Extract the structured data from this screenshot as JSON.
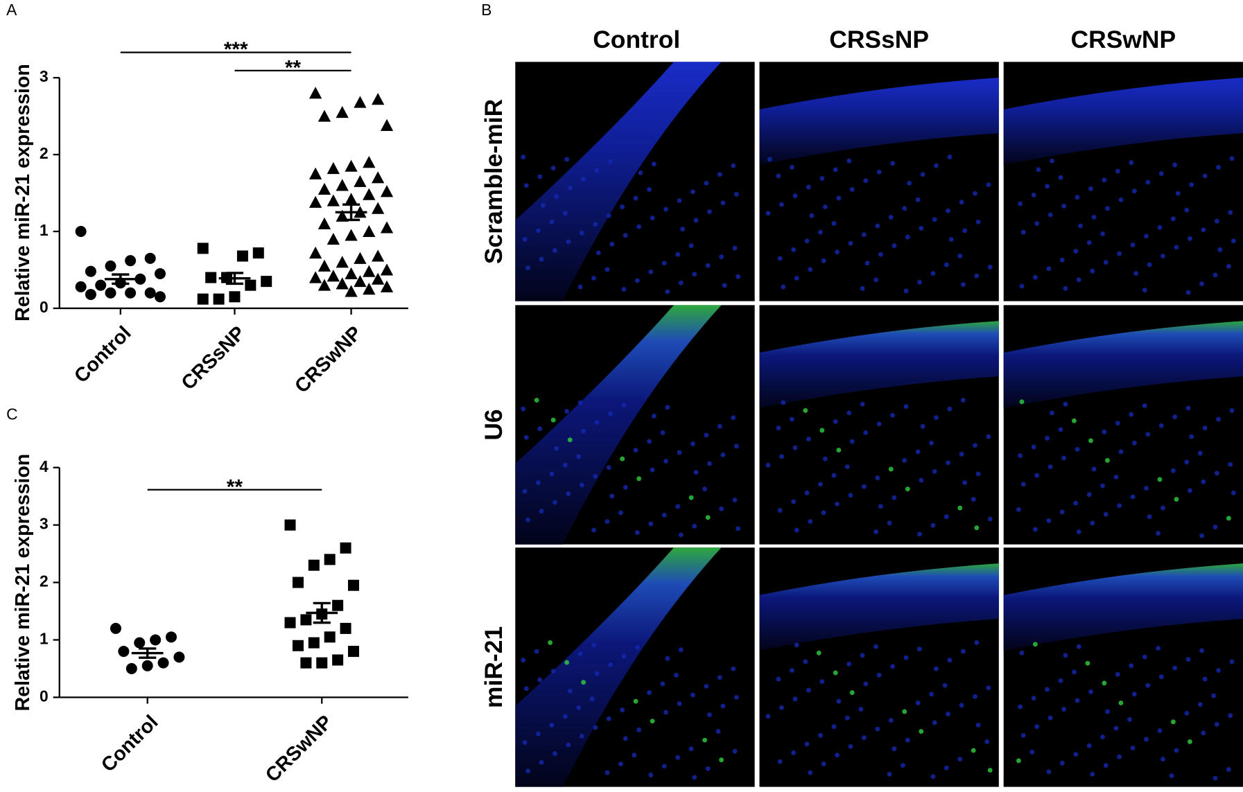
{
  "chart_data": [
    {
      "type": "strip",
      "panel_label": "A",
      "y_label": "Relative miR-21 expression",
      "categories": [
        "Control",
        "CRSsNP",
        "CRSwNP"
      ],
      "groups": [
        {
          "marker": "circle",
          "values": [
            1.0,
            0.65,
            0.62,
            0.55,
            0.48,
            0.45,
            0.38,
            0.33,
            0.3,
            0.28,
            0.2,
            0.2,
            0.2,
            0.18,
            0.15
          ],
          "mean": 0.38,
          "sem": 0.06
        },
        {
          "marker": "square",
          "values": [
            0.78,
            0.72,
            0.68,
            0.4,
            0.4,
            0.35,
            0.3,
            0.15,
            0.12,
            0.12
          ],
          "mean": 0.39,
          "sem": 0.07
        },
        {
          "marker": "triangle",
          "values": [
            2.8,
            2.72,
            2.68,
            2.55,
            2.5,
            2.38,
            1.9,
            1.85,
            1.82,
            1.75,
            1.7,
            1.65,
            1.6,
            1.55,
            1.52,
            1.48,
            1.42,
            1.4,
            1.38,
            1.3,
            1.25,
            1.2,
            1.1,
            1.05,
            1.0,
            0.95,
            0.9,
            0.72,
            0.68,
            0.65,
            0.6,
            0.55,
            0.5,
            0.48,
            0.45,
            0.42,
            0.4,
            0.38,
            0.35,
            0.32,
            0.3,
            0.28,
            0.25,
            0.22
          ],
          "mean": 1.25,
          "sem": 0.1
        }
      ],
      "ylim": [
        0,
        3
      ],
      "yticks": [
        0,
        1,
        2,
        3
      ],
      "significance": [
        {
          "between": [
            0,
            2
          ],
          "label": "***"
        },
        {
          "between": [
            1,
            2
          ],
          "label": "**"
        }
      ]
    },
    {
      "type": "strip",
      "panel_label": "C",
      "y_label": "Relative miR-21 expression",
      "categories": [
        "Control",
        "CRSwNP"
      ],
      "groups": [
        {
          "marker": "circle",
          "values": [
            1.2,
            1.05,
            1.0,
            0.95,
            0.8,
            0.7,
            0.6,
            0.55,
            0.5
          ],
          "mean": 0.77,
          "sem": 0.08
        },
        {
          "marker": "square",
          "values": [
            3.0,
            2.6,
            2.4,
            2.3,
            2.0,
            1.95,
            1.6,
            1.45,
            1.35,
            1.3,
            1.2,
            1.05,
            0.95,
            0.9,
            0.8,
            0.65,
            0.6,
            0.6
          ],
          "mean": 1.47,
          "sem": 0.17
        }
      ],
      "ylim": [
        0,
        4
      ],
      "yticks": [
        0,
        1,
        2,
        3,
        4
      ],
      "significance": [
        {
          "between": [
            0,
            1
          ],
          "label": "**"
        }
      ]
    }
  ],
  "panel_b": {
    "panel_label": "B",
    "columns": [
      "Control",
      "CRSsNP",
      "CRSwNP"
    ],
    "rows": [
      "Scramble-miR",
      "U6",
      "miR-21"
    ]
  }
}
